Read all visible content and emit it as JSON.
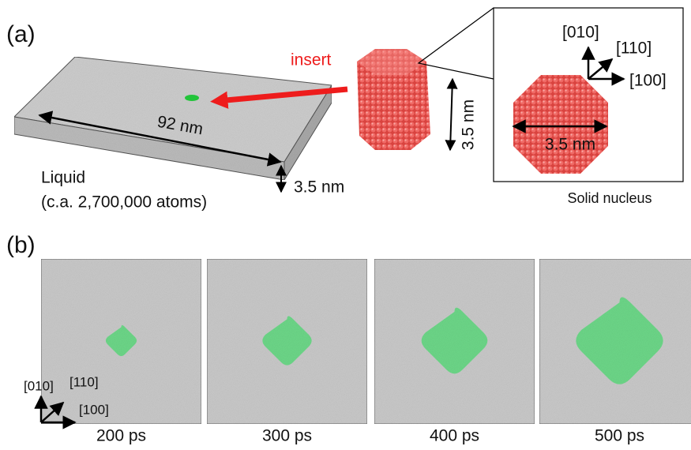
{
  "panel_a": {
    "label": "(a)",
    "insert_label": "insert",
    "slab": {
      "width": "92 nm",
      "thickness": "3.5 nm",
      "caption": [
        "Liquid",
        "(c.a. 2,700,000 atoms)"
      ]
    },
    "nucleus_3d": {
      "height": "3.5 nm"
    },
    "inset": {
      "axes": [
        "[010]",
        "[110]",
        "[100]"
      ],
      "width": "3.5 nm",
      "caption": "Solid nucleus"
    }
  },
  "panel_b": {
    "label": "(b)",
    "axes": [
      "[010]",
      "[110]",
      "[100]"
    ],
    "frames": [
      {
        "time": "200 ps"
      },
      {
        "time": "300 ps"
      },
      {
        "time": "400 ps"
      },
      {
        "time": "500 ps"
      }
    ]
  }
}
